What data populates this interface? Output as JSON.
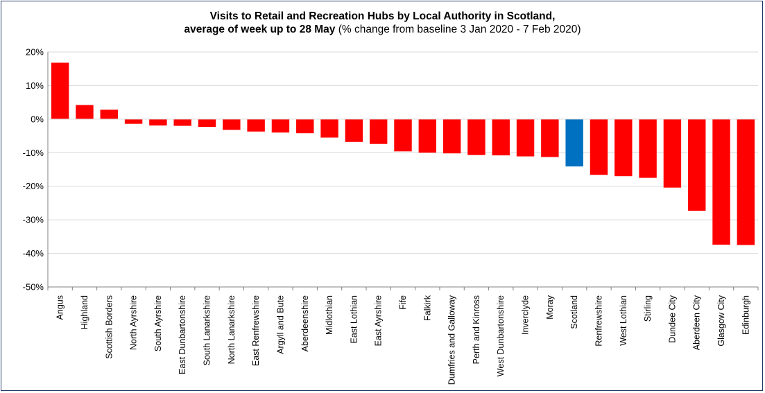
{
  "chart_data": {
    "type": "bar",
    "title_line1": "Visits to Retail and Recreation Hubs by Local Authority in Scotland,",
    "title_line2_bold": "average of week up to 28 May",
    "title_line2_rest": " (% change from baseline 3 Jan 2020 - 7 Feb 2020)",
    "xlabel": "",
    "ylabel": "",
    "ylim": [
      -50,
      20
    ],
    "yticks": [
      20,
      10,
      0,
      -10,
      -20,
      -30,
      -40,
      -50
    ],
    "ytick_labels": [
      "20%",
      "10%",
      "0%",
      "-10%",
      "-20%",
      "-30%",
      "-40%",
      "-50%"
    ],
    "grid": true,
    "categories": [
      "Angus",
      "Highland",
      "Scottish Borders",
      "North Ayrshire",
      "South Ayrshire",
      "East Dunbartonshire",
      "South Lanarkshire",
      "North Lanarkshire",
      "East Renfrewshire",
      "Argyll and Bute",
      "Aberdeenshire",
      "Midlothian",
      "East Lothian",
      "East Ayrshire",
      "Fife",
      "Falkirk",
      "Dumfries and Galloway",
      "Perth and Kinross",
      "West Dunbartonshire",
      "Inverclyde",
      "Moray",
      "Scotland",
      "Renfrewshire",
      "West Lothian",
      "Stirling",
      "Dundee City",
      "Aberdeen City",
      "Glasgow City",
      "Edinburgh"
    ],
    "values": [
      16.8,
      4.2,
      2.8,
      -1.4,
      -1.9,
      -2.0,
      -2.3,
      -3.2,
      -3.7,
      -4.0,
      -4.2,
      -5.5,
      -6.8,
      -7.4,
      -9.6,
      -10.0,
      -10.2,
      -10.7,
      -10.8,
      -11.1,
      -11.3,
      -14.1,
      -16.6,
      -17.0,
      -17.5,
      -20.4,
      -27.3,
      -37.4,
      -37.5
    ],
    "colors": {
      "default": "#ff0000",
      "highlight": "#0070c0",
      "highlight_category": "Scotland",
      "grid": "#d9d9d9",
      "axis": "#808080",
      "border": "#1f3864"
    }
  }
}
